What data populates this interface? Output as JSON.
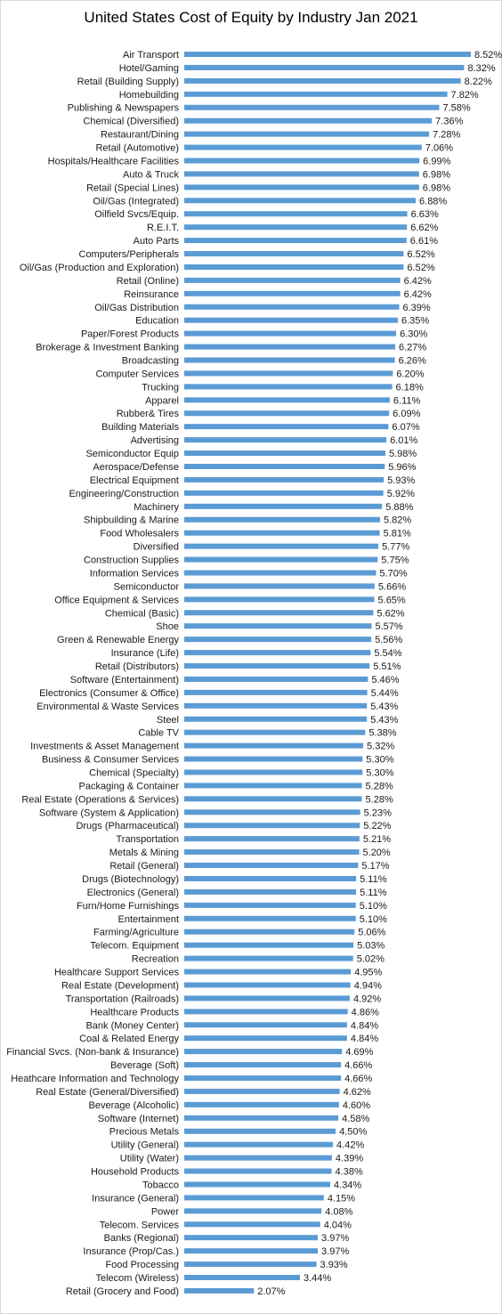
{
  "chart_data": {
    "type": "bar",
    "orientation": "horizontal",
    "title": "United States Cost of Equity by Industry Jan 2021",
    "value_format": "percent_2dp",
    "bar_color": "#5B9BD5",
    "xlim": [
      0,
      8.52
    ],
    "grid": false,
    "legend": "none",
    "categories": [
      "Air Transport",
      "Hotel/Gaming",
      "Retail (Building Supply)",
      "Homebuilding",
      "Publishing & Newspapers",
      "Chemical (Diversified)",
      "Restaurant/Dining",
      "Retail (Automotive)",
      "Hospitals/Healthcare Facilities",
      "Auto & Truck",
      "Retail (Special Lines)",
      "Oil/Gas (Integrated)",
      "Oilfield Svcs/Equip.",
      "R.E.I.T.",
      "Auto Parts",
      "Computers/Peripherals",
      "Oil/Gas (Production and Exploration)",
      "Retail (Online)",
      "Reinsurance",
      "Oil/Gas Distribution",
      "Education",
      "Paper/Forest Products",
      "Brokerage & Investment Banking",
      "Broadcasting",
      "Computer Services",
      "Trucking",
      "Apparel",
      "Rubber& Tires",
      "Building Materials",
      "Advertising",
      "Semiconductor Equip",
      "Aerospace/Defense",
      "Electrical Equipment",
      "Engineering/Construction",
      "Machinery",
      "Shipbuilding & Marine",
      "Food Wholesalers",
      "Diversified",
      "Construction Supplies",
      "Information Services",
      "Semiconductor",
      "Office Equipment & Services",
      "Chemical (Basic)",
      "Shoe",
      "Green & Renewable Energy",
      "Insurance (Life)",
      "Retail (Distributors)",
      "Software (Entertainment)",
      "Electronics (Consumer & Office)",
      "Environmental & Waste Services",
      "Steel",
      "Cable TV",
      "Investments & Asset Management",
      "Business & Consumer Services",
      "Chemical (Specialty)",
      "Packaging & Container",
      "Real Estate (Operations & Services)",
      "Software (System & Application)",
      "Drugs (Pharmaceutical)",
      "Transportation",
      "Metals & Mining",
      "Retail (General)",
      "Drugs (Biotechnology)",
      "Electronics (General)",
      "Furn/Home Furnishings",
      "Entertainment",
      "Farming/Agriculture",
      "Telecom. Equipment",
      "Recreation",
      "Healthcare Support Services",
      "Real Estate (Development)",
      "Transportation (Railroads)",
      "Healthcare Products",
      "Bank (Money Center)",
      "Coal & Related Energy",
      "Financial Svcs. (Non-bank & Insurance)",
      "Beverage (Soft)",
      "Heathcare Information and Technology",
      "Real Estate (General/Diversified)",
      "Beverage (Alcoholic)",
      "Software (Internet)",
      "Precious Metals",
      "Utility (General)",
      "Utility (Water)",
      "Household Products",
      "Tobacco",
      "Insurance (General)",
      "Power",
      "Telecom. Services",
      "Banks (Regional)",
      "Insurance (Prop/Cas.)",
      "Food Processing",
      "Telecom (Wireless)",
      "Retail (Grocery and Food)"
    ],
    "values": [
      8.52,
      8.32,
      8.22,
      7.82,
      7.58,
      7.36,
      7.28,
      7.06,
      6.99,
      6.98,
      6.98,
      6.88,
      6.63,
      6.62,
      6.61,
      6.52,
      6.52,
      6.42,
      6.42,
      6.39,
      6.35,
      6.3,
      6.27,
      6.26,
      6.2,
      6.18,
      6.11,
      6.09,
      6.07,
      6.01,
      5.98,
      5.96,
      5.93,
      5.92,
      5.88,
      5.82,
      5.81,
      5.77,
      5.75,
      5.7,
      5.66,
      5.65,
      5.62,
      5.57,
      5.56,
      5.54,
      5.51,
      5.46,
      5.44,
      5.43,
      5.43,
      5.38,
      5.32,
      5.3,
      5.3,
      5.28,
      5.28,
      5.23,
      5.22,
      5.21,
      5.2,
      5.17,
      5.11,
      5.11,
      5.1,
      5.1,
      5.06,
      5.03,
      5.02,
      4.95,
      4.94,
      4.92,
      4.86,
      4.84,
      4.84,
      4.69,
      4.66,
      4.66,
      4.62,
      4.6,
      4.58,
      4.5,
      4.42,
      4.39,
      4.38,
      4.34,
      4.15,
      4.08,
      4.04,
      3.97,
      3.97,
      3.93,
      3.44,
      2.07
    ]
  }
}
